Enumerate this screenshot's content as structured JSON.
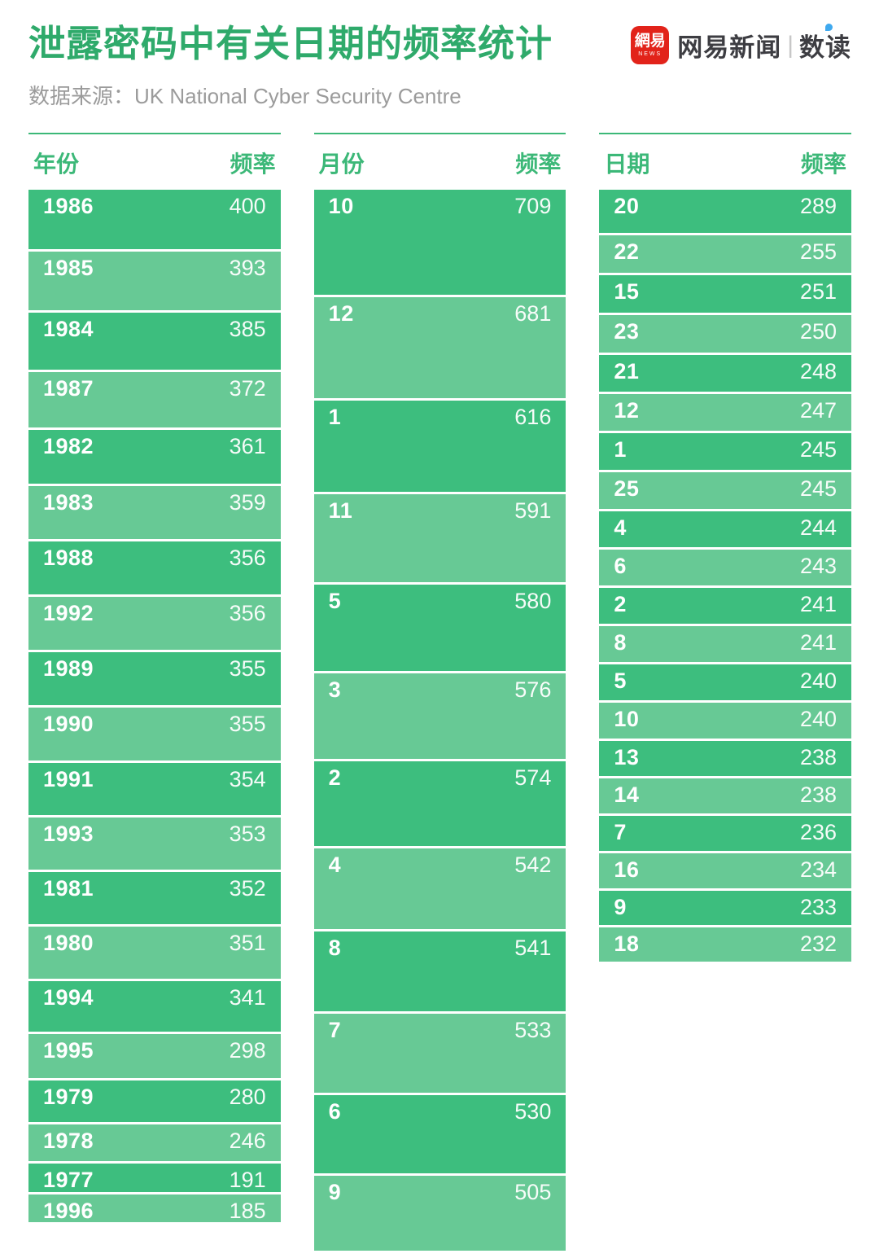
{
  "header": {
    "title": "泄露密码中有关日期的频率统计",
    "source_label": "数据来源：",
    "source_value": "UK National Cyber Security Centre",
    "logo": {
      "badge_top": "網易",
      "badge_bottom": "NEWS",
      "brand": "网易新闻",
      "divider": "|",
      "sub_brand": "数读"
    }
  },
  "colors": {
    "title_green": "#2faa6b",
    "header_green": "#3cb878",
    "bar_dark": "#3dbe7e",
    "bar_light": "#67c995",
    "source_gray": "#9b9b9b",
    "logo_red": "#e2231a",
    "brand_dark": "#3d3d42",
    "logo_blue": "#3fa9ef"
  },
  "chart_data": [
    {
      "type": "bar",
      "title": "年份",
      "value_header": "频率",
      "orientation": "vertical-stack, row height proportional to value",
      "categories": [
        "1986",
        "1985",
        "1984",
        "1987",
        "1982",
        "1983",
        "1988",
        "1992",
        "1989",
        "1990",
        "1991",
        "1993",
        "1981",
        "1980",
        "1994",
        "1995",
        "1979",
        "1978",
        "1977",
        "1996"
      ],
      "values": [
        400,
        393,
        385,
        372,
        361,
        359,
        356,
        356,
        355,
        355,
        354,
        353,
        352,
        351,
        341,
        298,
        280,
        246,
        191,
        185
      ]
    },
    {
      "type": "bar",
      "title": "月份",
      "value_header": "频率",
      "orientation": "vertical-stack, row height proportional to value",
      "categories": [
        "10",
        "12",
        "1",
        "11",
        "5",
        "3",
        "2",
        "4",
        "8",
        "7",
        "6",
        "9"
      ],
      "values": [
        709,
        681,
        616,
        591,
        580,
        576,
        574,
        542,
        541,
        533,
        530,
        505
      ]
    },
    {
      "type": "bar",
      "title": "日期",
      "value_header": "频率",
      "orientation": "vertical-stack, row height proportional to value",
      "categories": [
        "20",
        "22",
        "15",
        "23",
        "21",
        "12",
        "1",
        "25",
        "4",
        "6",
        "2",
        "8",
        "5",
        "10",
        "13",
        "14",
        "7",
        "16",
        "9",
        "18"
      ],
      "values": [
        289,
        255,
        251,
        250,
        248,
        247,
        245,
        245,
        244,
        243,
        241,
        241,
        240,
        240,
        238,
        238,
        236,
        234,
        233,
        232
      ]
    }
  ]
}
